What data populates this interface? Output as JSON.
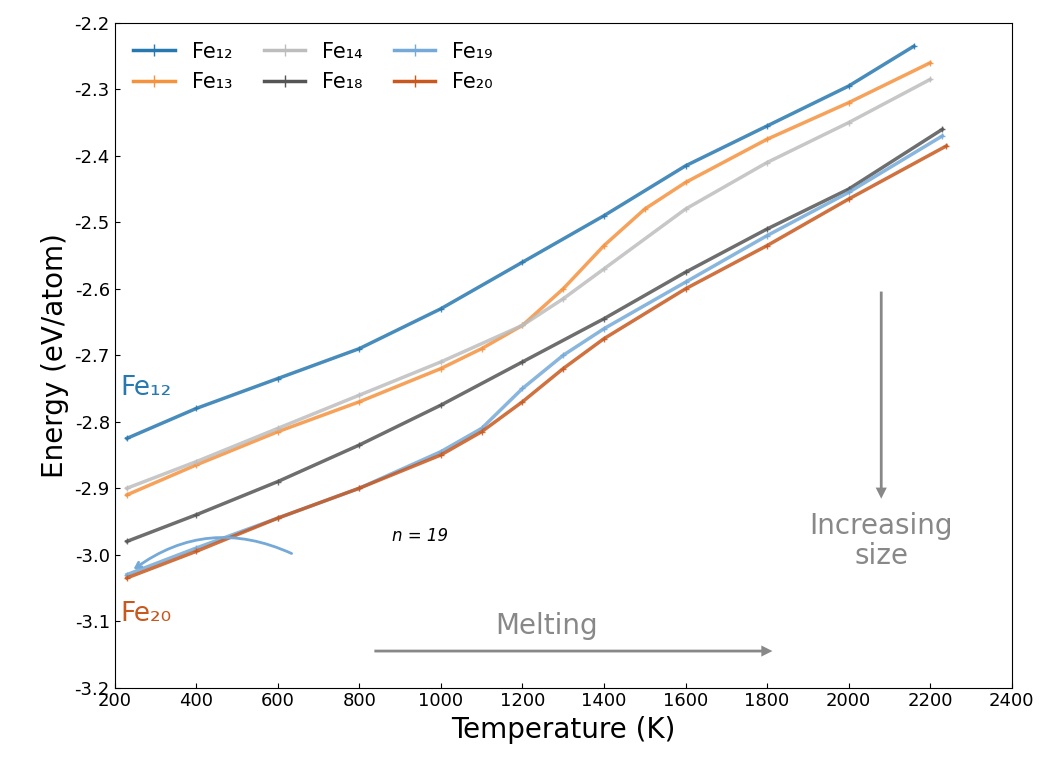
{
  "chart_data": {
    "type": "line",
    "x_label": "Temperature (K)",
    "y_label": "Energy (eV/atom)",
    "xlim": [
      200,
      2400
    ],
    "ylim": [
      -3.2,
      -2.2
    ],
    "xticks": [
      200,
      400,
      600,
      800,
      1000,
      1200,
      1400,
      1600,
      1800,
      2000,
      2200,
      2400
    ],
    "yticks": [
      -3.2,
      -3.1,
      -3.0,
      -2.9,
      -2.8,
      -2.7,
      -2.6,
      -2.5,
      -2.4,
      -2.3,
      -2.2
    ],
    "legend": "upper left",
    "marker": "plus",
    "grid": false,
    "annotations": [
      "Fe₁₂",
      "Fe₂₀",
      "n = 19",
      "Melting",
      "Increasing\nsize"
    ],
    "series": [
      {
        "name": "Fe₁₂",
        "color": "#2878b0",
        "x": [
          230,
          400,
          600,
          800,
          1000,
          1200,
          1400,
          1600,
          1800,
          2000,
          2160
        ],
        "values": [
          -2.825,
          -2.78,
          -2.735,
          -2.69,
          -2.63,
          -2.56,
          -2.49,
          -2.415,
          -2.355,
          -2.295,
          -2.235
        ]
      },
      {
        "name": "Fe₁₃",
        "color": "#f5923e",
        "x": [
          230,
          400,
          600,
          800,
          1000,
          1100,
          1200,
          1300,
          1400,
          1500,
          1600,
          1800,
          2000,
          2200
        ],
        "values": [
          -2.91,
          -2.865,
          -2.815,
          -2.77,
          -2.72,
          -2.69,
          -2.655,
          -2.6,
          -2.535,
          -2.48,
          -2.44,
          -2.375,
          -2.32,
          -2.26
        ]
      },
      {
        "name": "Fe₁₄",
        "color": "#bdbdbd",
        "x": [
          230,
          400,
          600,
          800,
          1000,
          1200,
          1300,
          1400,
          1600,
          1800,
          2000,
          2200
        ],
        "values": [
          -2.9,
          -2.86,
          -2.81,
          -2.76,
          -2.71,
          -2.655,
          -2.615,
          -2.57,
          -2.48,
          -2.41,
          -2.35,
          -2.285
        ]
      },
      {
        "name": "Fe₁₈",
        "color": "#555555",
        "x": [
          230,
          400,
          600,
          800,
          1000,
          1200,
          1400,
          1600,
          1800,
          2000,
          2230
        ],
        "values": [
          -2.98,
          -2.94,
          -2.89,
          -2.835,
          -2.775,
          -2.71,
          -2.645,
          -2.575,
          -2.51,
          -2.45,
          -2.36
        ]
      },
      {
        "name": "Fe₁₉",
        "color": "#74a9d8",
        "x": [
          230,
          400,
          600,
          800,
          1000,
          1100,
          1200,
          1300,
          1400,
          1600,
          1800,
          2000,
          2230
        ],
        "values": [
          -3.03,
          -2.99,
          -2.945,
          -2.9,
          -2.845,
          -2.81,
          -2.75,
          -2.7,
          -2.66,
          -2.59,
          -2.52,
          -2.455,
          -2.37
        ]
      },
      {
        "name": "Fe₂₀",
        "color": "#c8581e",
        "x": [
          230,
          400,
          600,
          800,
          1000,
          1100,
          1200,
          1300,
          1400,
          1600,
          1800,
          2000,
          2240
        ],
        "values": [
          -3.035,
          -2.995,
          -2.945,
          -2.9,
          -2.85,
          -2.815,
          -2.77,
          -2.72,
          -2.675,
          -2.6,
          -2.535,
          -2.465,
          -2.385
        ]
      }
    ]
  }
}
